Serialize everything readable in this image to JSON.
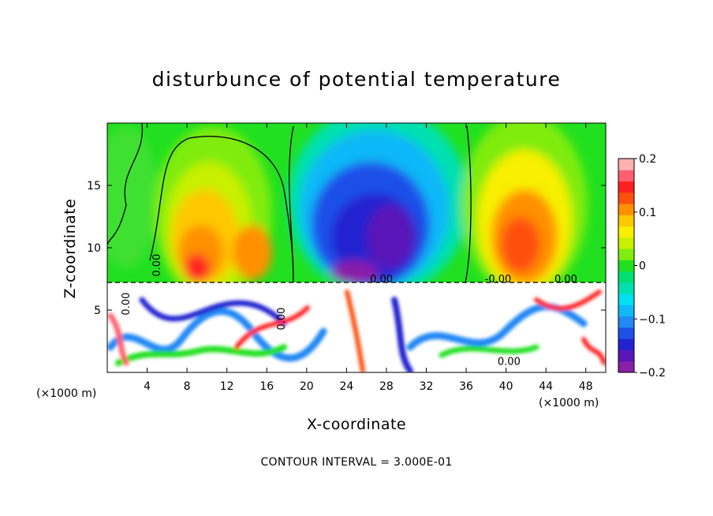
{
  "chart_data": {
    "type": "heatmap",
    "title": "disturbunce of potential temperature",
    "xlabel": "X-coordinate",
    "ylabel": "Z-coordinate",
    "x_unit": "(×1000 m)",
    "y_unit": "(×1000 m)",
    "xlim": [
      0,
      50
    ],
    "ylim": [
      0,
      20
    ],
    "x_ticks": [
      4,
      8,
      12,
      16,
      20,
      24,
      28,
      32,
      36,
      40,
      44,
      48
    ],
    "y_ticks": [
      5,
      10,
      15
    ],
    "colorbar": {
      "min": -0.2,
      "max": 0.2,
      "ticks": [
        0.2,
        0.1,
        0,
        -0.1,
        -0.2
      ],
      "tick_labels": [
        "0.2",
        "0.1",
        "0",
        "−0.1",
        "−0.2"
      ],
      "colors": [
        "#8a1fa8",
        "#5a16b8",
        "#2222d0",
        "#1e50e8",
        "#2288f4",
        "#10b8f8",
        "#00e0f0",
        "#00e0b0",
        "#00e070",
        "#20e020",
        "#80ec10",
        "#c8f000",
        "#f8f000",
        "#ffc800",
        "#ff9000",
        "#ff5010",
        "#ff2020",
        "#ff6070",
        "#ffb0b0"
      ]
    },
    "contour_labels": [
      "0.00",
      "0.00",
      "0.00",
      "0.00",
      "-0.00",
      "0.00",
      "0.00"
    ],
    "note": "CONTOUR INTERVAL = 3.000E-01"
  }
}
